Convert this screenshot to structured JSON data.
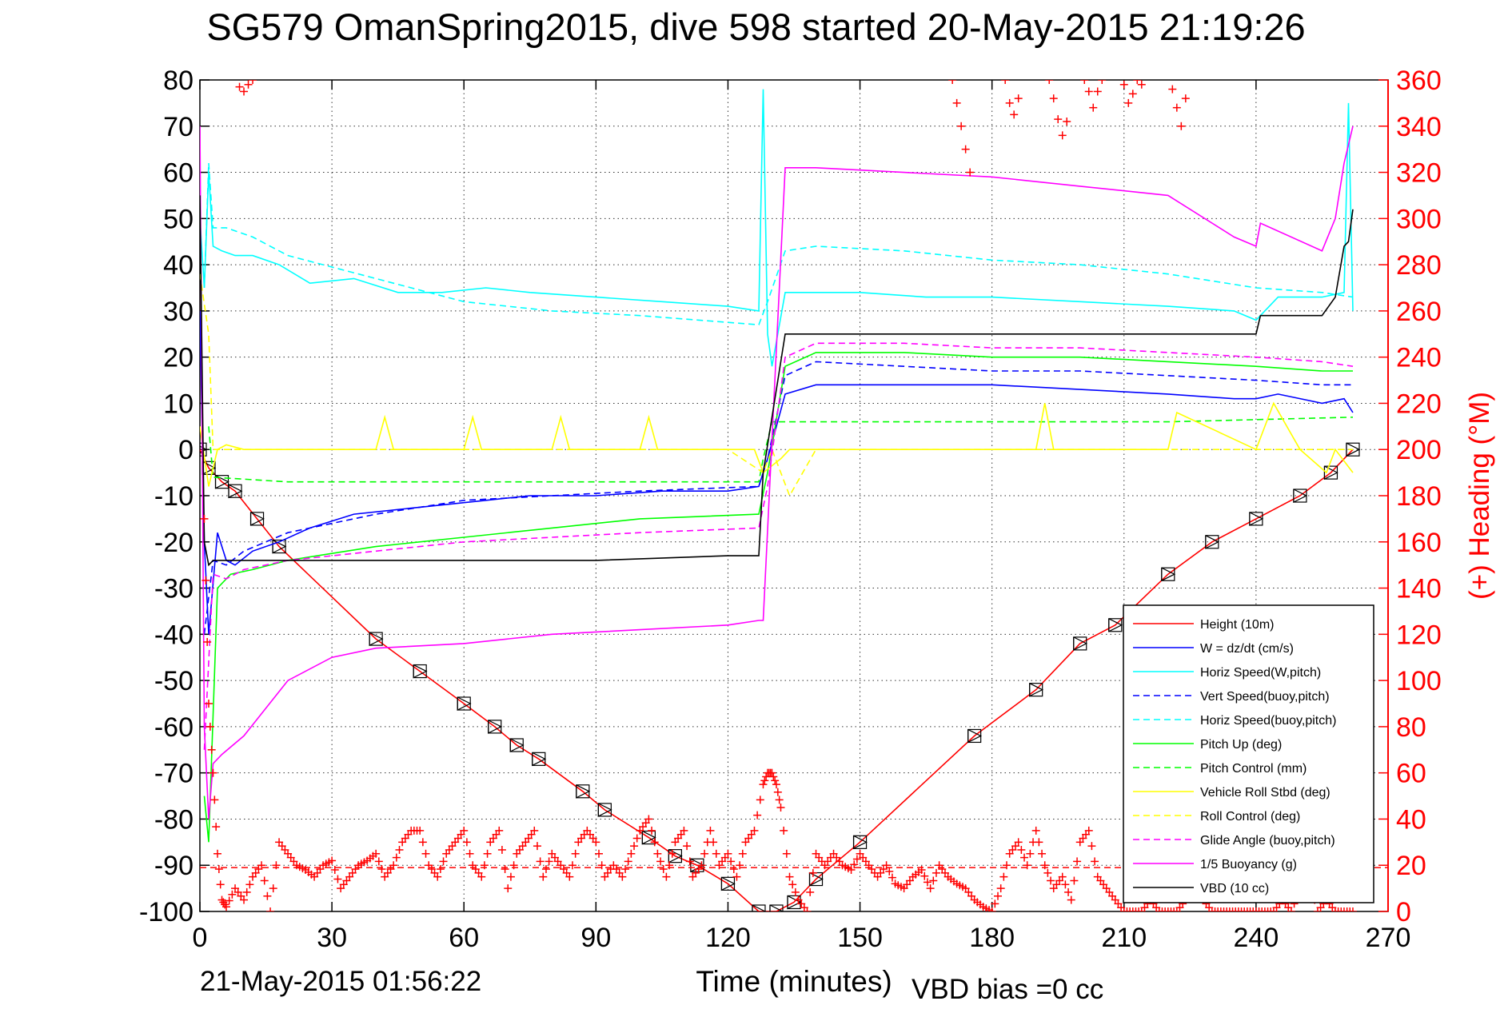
{
  "chart_data": {
    "type": "line",
    "title": "SG579 OmanSpring2015, dive 598 started 20-May-2015 21:19:26",
    "xlabel": "Time (minutes)",
    "ylabel": "",
    "y2label": "(+) Heading (°M)",
    "xlim": [
      0,
      270
    ],
    "ylim": [
      -100,
      80
    ],
    "y2lim": [
      0,
      360
    ],
    "xticks": [
      0,
      30,
      60,
      90,
      120,
      150,
      180,
      210,
      240,
      270
    ],
    "yticks": [
      80,
      70,
      60,
      50,
      40,
      30,
      20,
      10,
      0,
      -10,
      -20,
      -30,
      -40,
      -50,
      -60,
      -70,
      -80,
      -90,
      -100
    ],
    "y2ticks": [
      360,
      340,
      320,
      300,
      280,
      260,
      240,
      220,
      200,
      180,
      160,
      140,
      120,
      100,
      80,
      60,
      40,
      20,
      0
    ],
    "grid": true,
    "legend_position": "bottom-right",
    "colors": {
      "height": "#ff0000",
      "w": "#0000ff",
      "horiz_w": "#00ffff",
      "vert_buoy": "#0000ff",
      "horiz_buoy": "#00ffff",
      "pitch": "#00ff00",
      "pitch_ctrl": "#00ff00",
      "roll": "#ffff00",
      "roll_ctrl": "#ffff00",
      "glide": "#ff00ff",
      "buoy": "#ff00ff",
      "vbd": "#000000"
    },
    "series": [
      {
        "key": "height",
        "name": "Height (10m)",
        "style": "solid",
        "x": [
          0,
          2,
          5,
          8,
          13,
          18,
          40,
          50,
          60,
          67,
          72,
          77,
          87,
          92,
          102,
          108,
          113,
          120,
          127,
          131,
          135,
          140,
          150,
          176,
          190,
          200,
          208,
          220,
          230,
          240,
          250,
          257,
          262
        ],
        "y": [
          0,
          -4,
          -7,
          -9,
          -15,
          -21,
          -41,
          -48,
          -55,
          -60,
          -64,
          -67,
          -74,
          -78,
          -84,
          -88,
          -90,
          -94,
          -100,
          -100,
          -98,
          -93,
          -85,
          -62,
          -52,
          -42,
          -38,
          -27,
          -20,
          -15,
          -10,
          -5,
          0
        ]
      },
      {
        "key": "w",
        "name": "W = dz/dt (cm/s)",
        "style": "solid",
        "x": [
          0,
          1,
          2,
          4,
          6,
          8,
          12,
          18,
          25,
          35,
          45,
          55,
          65,
          75,
          90,
          105,
          120,
          127,
          129,
          133,
          140,
          150,
          165,
          180,
          200,
          220,
          235,
          240,
          245,
          255,
          260,
          262
        ],
        "y": [
          30,
          -20,
          -40,
          -18,
          -24,
          -25,
          -22,
          -20,
          -17,
          -14,
          -13,
          -12,
          -11,
          -10,
          -10,
          -9,
          -9,
          -8,
          -2,
          12,
          14,
          14,
          14,
          14,
          13,
          12,
          11,
          11,
          12,
          10,
          11,
          8
        ]
      },
      {
        "key": "horiz_w",
        "name": "Horiz Speed(W,pitch)",
        "style": "solid",
        "x": [
          0,
          1,
          2,
          3,
          5,
          8,
          12,
          18,
          25,
          35,
          45,
          55,
          65,
          75,
          90,
          105,
          120,
          127,
          128,
          129,
          130,
          133,
          140,
          150,
          165,
          180,
          200,
          220,
          235,
          240,
          245,
          255,
          260,
          261,
          262
        ],
        "y": [
          50,
          35,
          60,
          44,
          43,
          42,
          42,
          40,
          36,
          37,
          34,
          34,
          35,
          34,
          33,
          32,
          31,
          30,
          78,
          25,
          18,
          34,
          34,
          34,
          33,
          33,
          32,
          31,
          30,
          28,
          33,
          33,
          34,
          75,
          30
        ]
      },
      {
        "key": "vert_buoy",
        "name": "Vert Speed(buoy,pitch)",
        "style": "dashed",
        "x": [
          1,
          3,
          6,
          10,
          20,
          40,
          60,
          80,
          100,
          127,
          129,
          133,
          140,
          160,
          180,
          200,
          220,
          240,
          255,
          262
        ],
        "y": [
          -40,
          -24,
          -25,
          -22,
          -18,
          -14,
          -11,
          -10,
          -9,
          -8,
          -2,
          16,
          19,
          18,
          17,
          17,
          16,
          15,
          14,
          14
        ]
      },
      {
        "key": "horiz_buoy",
        "name": "Horiz Speed(buoy,pitch)",
        "style": "dashed",
        "x": [
          1,
          2,
          3,
          6,
          12,
          20,
          40,
          60,
          80,
          100,
          127,
          129,
          133,
          140,
          160,
          180,
          200,
          220,
          240,
          255,
          262
        ],
        "y": [
          35,
          62,
          48,
          48,
          46,
          42,
          37,
          32,
          30,
          29,
          27,
          32,
          43,
          44,
          43,
          41,
          40,
          38,
          35,
          34,
          33
        ]
      },
      {
        "key": "pitch",
        "name": "Pitch Up (deg)",
        "style": "solid",
        "x": [
          1,
          2,
          4,
          7,
          12,
          20,
          40,
          60,
          80,
          100,
          127,
          129,
          133,
          140,
          160,
          180,
          200,
          220,
          240,
          255,
          262
        ],
        "y": [
          -75,
          -85,
          -30,
          -27,
          -26,
          -24,
          -21,
          -19,
          -17,
          -15,
          -14,
          -5,
          18,
          21,
          21,
          20,
          20,
          19,
          18,
          17,
          17
        ]
      },
      {
        "key": "pitch_ctrl",
        "name": "Pitch Control (mm)",
        "style": "dashed",
        "x": [
          2,
          3,
          20,
          60,
          100,
          127,
          128,
          130,
          131,
          180,
          220,
          262
        ],
        "y": [
          5,
          -6,
          -7,
          -7,
          -7,
          -7,
          -2,
          6,
          6,
          6,
          6,
          7
        ]
      },
      {
        "key": "roll",
        "name": "Vehicle Roll Stbd (deg)",
        "style": "solid",
        "x": [
          0,
          2,
          4,
          6,
          10,
          20,
          40,
          42,
          44,
          60,
          62,
          64,
          80,
          82,
          84,
          100,
          102,
          104,
          120,
          126,
          128,
          132,
          134,
          140,
          160,
          180,
          190,
          192,
          194,
          220,
          222,
          240,
          244,
          250,
          256,
          258,
          262
        ],
        "y": [
          5,
          -8,
          0,
          1,
          0,
          0,
          0,
          7,
          0,
          0,
          7,
          0,
          0,
          7,
          0,
          0,
          7,
          0,
          0,
          0,
          -5,
          -2,
          0,
          0,
          0,
          0,
          0,
          10,
          0,
          0,
          8,
          0,
          10,
          0,
          -5,
          0,
          -5
        ]
      },
      {
        "key": "roll_ctrl",
        "name": "Roll Control (deg)",
        "style": "dashed",
        "x": [
          0,
          2,
          3,
          6,
          20,
          120,
          128,
          130,
          134,
          140,
          180,
          220,
          262
        ],
        "y": [
          38,
          25,
          0,
          0,
          0,
          0,
          -5,
          0,
          -10,
          0,
          0,
          0,
          0
        ]
      },
      {
        "key": "glide",
        "name": "Glide Angle (buoy,pitch)",
        "style": "dashed",
        "x": [
          1,
          3,
          6,
          10,
          20,
          40,
          60,
          80,
          100,
          127,
          129,
          133,
          140,
          160,
          180,
          200,
          220,
          240,
          255,
          262
        ],
        "y": [
          -65,
          -27,
          -28,
          -26,
          -24,
          -22,
          -20,
          -19,
          -18,
          -17,
          -8,
          20,
          23,
          23,
          22,
          22,
          21,
          20,
          19,
          18
        ]
      },
      {
        "key": "buoy",
        "name": "1/5 Buoyancy (g)",
        "style": "solid",
        "x": [
          0,
          1,
          2,
          3,
          5,
          10,
          20,
          30,
          40,
          60,
          80,
          100,
          120,
          127,
          128,
          133,
          140,
          160,
          180,
          200,
          220,
          235,
          240,
          241,
          255,
          258,
          260,
          262
        ],
        "y": [
          70,
          -60,
          -80,
          -68,
          -66,
          -62,
          -50,
          -45,
          -43,
          -42,
          -40,
          -39,
          -38,
          -37,
          -37,
          61,
          61,
          60,
          59,
          57,
          55,
          46,
          44,
          49,
          43,
          50,
          62,
          70
        ]
      },
      {
        "key": "vbd",
        "name": "VBD (10 cc)",
        "style": "solid",
        "x": [
          0,
          1,
          2,
          3,
          10,
          30,
          60,
          90,
          120,
          127,
          128,
          133,
          140,
          180,
          220,
          240,
          241,
          255,
          258,
          260,
          261,
          262
        ],
        "y": [
          55,
          -20,
          -25,
          -24,
          -24,
          -24,
          -24,
          -24,
          -23,
          -23,
          -5,
          25,
          25,
          25,
          25,
          25,
          29,
          29,
          33,
          44,
          45,
          52
        ]
      }
    ],
    "heading": {
      "color": "#ff0000",
      "marker": "+",
      "mean": 19,
      "x": [
        1,
        2,
        3,
        4,
        5,
        6,
        8,
        10,
        12,
        14,
        16,
        18,
        20,
        22,
        24,
        26,
        28,
        30,
        32,
        34,
        36,
        38,
        40,
        42,
        44,
        46,
        48,
        50,
        52,
        54,
        56,
        58,
        60,
        62,
        64,
        66,
        68,
        70,
        72,
        74,
        76,
        78,
        80,
        82,
        84,
        86,
        88,
        90,
        92,
        94,
        96,
        98,
        100,
        102,
        104,
        106,
        108,
        110,
        112,
        114,
        116,
        118,
        120,
        122,
        124,
        126,
        128,
        129,
        130,
        131,
        132,
        134,
        136,
        138,
        140,
        142,
        144,
        146,
        148,
        150,
        152,
        154,
        156,
        158,
        160,
        162,
        164,
        166,
        168,
        170,
        172,
        174,
        176,
        178,
        180,
        182,
        184,
        186,
        188,
        190,
        192,
        194,
        196,
        198,
        200,
        202,
        204,
        206,
        208,
        210,
        212,
        214,
        216,
        218,
        220,
        222,
        224,
        226,
        228,
        230,
        232,
        234,
        236,
        238,
        240,
        242,
        244,
        246,
        248,
        250,
        252,
        254,
        256,
        258,
        260,
        262
      ],
      "y": [
        170,
        90,
        60,
        25,
        5,
        2,
        10,
        5,
        15,
        20,
        0,
        30,
        25,
        20,
        18,
        15,
        20,
        22,
        10,
        15,
        20,
        22,
        25,
        15,
        20,
        30,
        35,
        35,
        20,
        15,
        25,
        30,
        35,
        20,
        15,
        30,
        35,
        10,
        25,
        30,
        35,
        15,
        25,
        20,
        15,
        30,
        35,
        30,
        15,
        20,
        15,
        25,
        35,
        40,
        25,
        15,
        30,
        35,
        15,
        20,
        35,
        20,
        25,
        15,
        30,
        35,
        55,
        60,
        60,
        55,
        45,
        15,
        5,
        0,
        25,
        20,
        25,
        20,
        18,
        25,
        20,
        15,
        20,
        12,
        10,
        15,
        18,
        10,
        20,
        15,
        12,
        10,
        5,
        2,
        0,
        10,
        25,
        30,
        20,
        35,
        20,
        10,
        15,
        5,
        30,
        35,
        15,
        10,
        5,
        0,
        0,
        0,
        5,
        0,
        0,
        0,
        5,
        10,
        5,
        0,
        0,
        0,
        0,
        0,
        0,
        0,
        0,
        5,
        0,
        10,
        15,
        0,
        5,
        0,
        0,
        0
      ]
    },
    "heading_upper": {
      "x": [
        9,
        10,
        11,
        12,
        171,
        172,
        173,
        174,
        175,
        183,
        184,
        185,
        186,
        193,
        194,
        195,
        196,
        197,
        201,
        202,
        203,
        204,
        205,
        210,
        211,
        212,
        213,
        214,
        221,
        222,
        223,
        224
      ],
      "y": [
        357,
        355,
        358,
        360,
        360,
        350,
        340,
        330,
        320,
        360,
        350,
        345,
        352,
        360,
        352,
        343,
        336,
        342,
        360,
        355,
        348,
        355,
        360,
        358,
        350,
        354,
        360,
        358,
        356,
        348,
        340,
        352
      ]
    }
  },
  "footer": {
    "timestamp": "21-May-2015 01:56:22",
    "vbd_bias": "VBD bias =0 cc"
  }
}
